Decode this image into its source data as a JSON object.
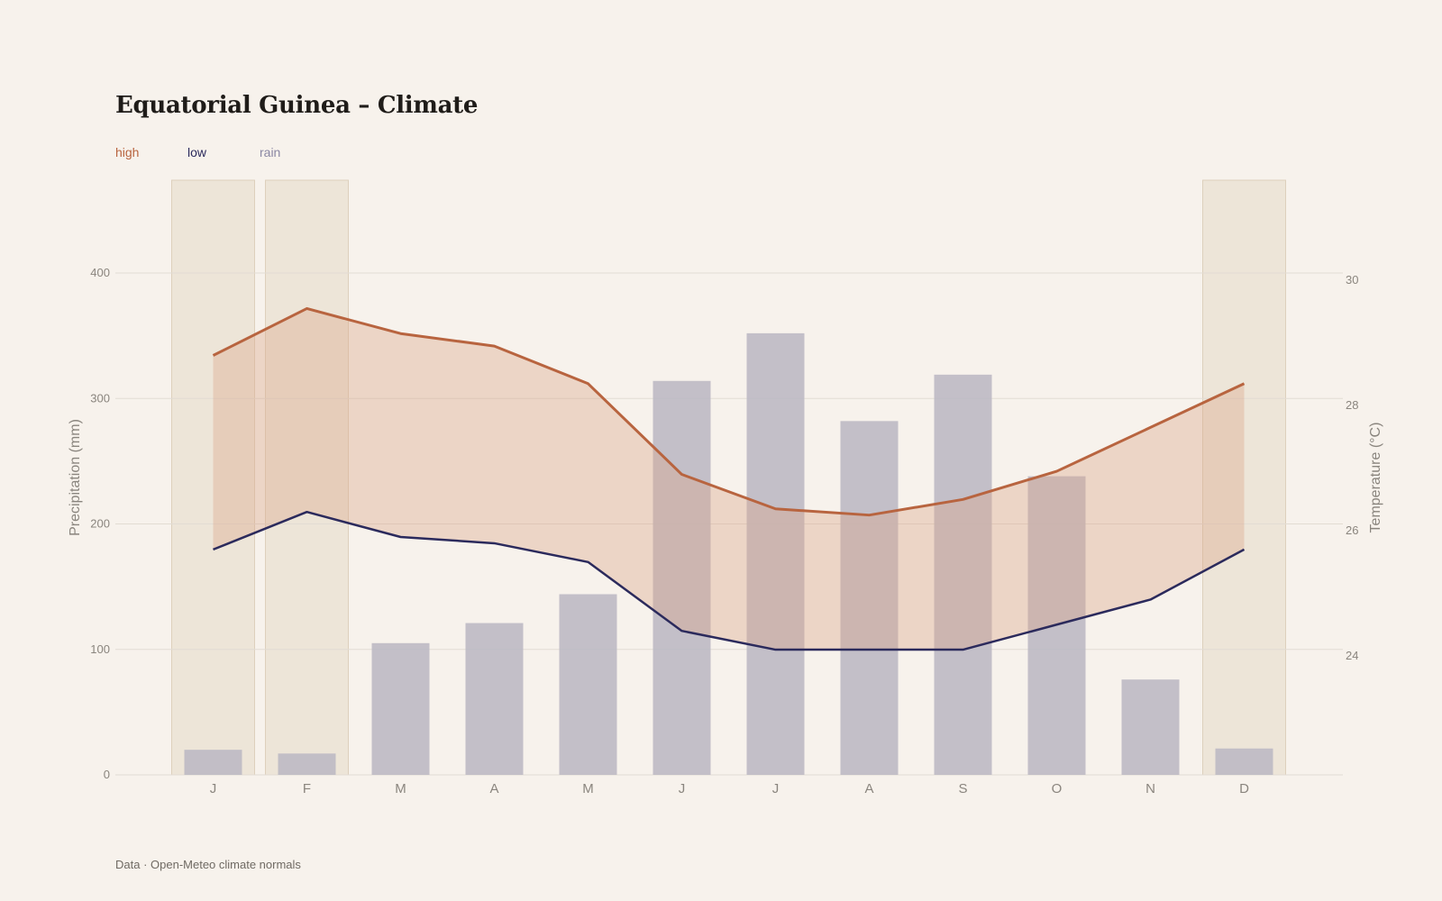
{
  "title": "Equatorial Guinea – Climate",
  "legend": [
    {
      "key": "high",
      "label": "high",
      "color": "#b8643f"
    },
    {
      "key": "low",
      "label": "low",
      "color": "#2b2a5c"
    },
    {
      "key": "rain",
      "label": "rain",
      "color": "#8a87a3"
    }
  ],
  "footer": "Data · Open-Meteo climate normals",
  "colors": {
    "background": "#f7f2ec",
    "band_fill": "#d9a58a",
    "rain_bar": "#bdb9c4",
    "season_shade": "#e6dac8",
    "grid": "#e2dcd3"
  },
  "chart_data": {
    "type": "bar+line",
    "categories": [
      "J",
      "F",
      "M",
      "A",
      "M",
      "J",
      "J",
      "A",
      "S",
      "O",
      "N",
      "D"
    ],
    "highlighted_months": [
      "J",
      "F",
      "D"
    ],
    "rain": {
      "name": "rain",
      "unit": "mm",
      "values": [
        20,
        17,
        105,
        121,
        144,
        314,
        352,
        282,
        319,
        238,
        76,
        21
      ]
    },
    "high": {
      "name": "high",
      "unit": "°C",
      "values": [
        28.8,
        29.55,
        29.15,
        28.95,
        28.35,
        26.9,
        26.35,
        26.25,
        26.5,
        26.95,
        27.65,
        28.35
      ]
    },
    "low": {
      "name": "low",
      "unit": "°C",
      "values": [
        25.7,
        26.3,
        25.9,
        25.8,
        25.5,
        24.4,
        24.1,
        24.1,
        24.1,
        24.5,
        24.9,
        25.7
      ]
    },
    "y_left": {
      "label": "Precipitation (mm)",
      "ticks": [
        0,
        100,
        200,
        300,
        400
      ],
      "range": [
        0,
        474
      ]
    },
    "y_right": {
      "label": "Temperature (°C)",
      "ticks": [
        24,
        26,
        28,
        30
      ],
      "range": [
        22.1,
        31.6
      ]
    },
    "grid": true,
    "legend_position": "top-left"
  }
}
